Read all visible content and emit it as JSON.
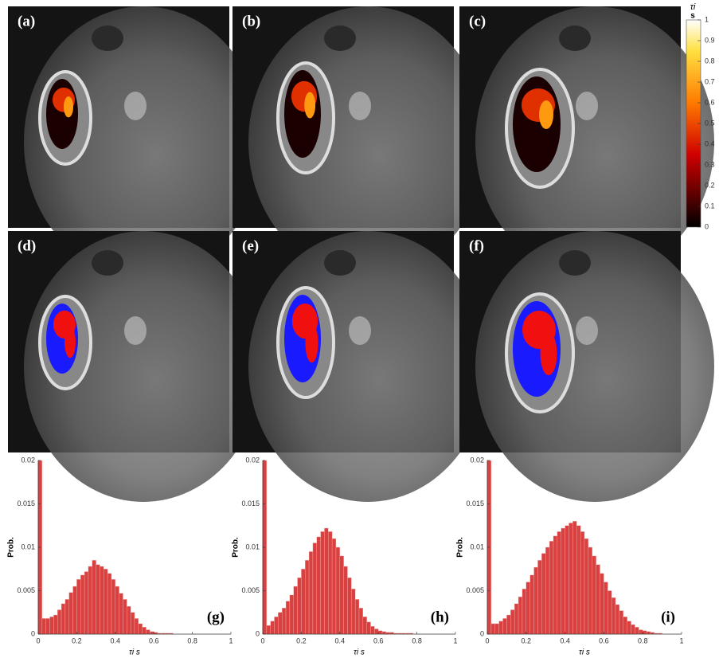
{
  "panels": [
    "(a)",
    "(b)",
    "(c)",
    "(d)",
    "(e)",
    "(f)"
  ],
  "colorbar": {
    "title": "τi",
    "unit": "s",
    "lim": [
      0,
      1
    ],
    "ticks": [
      0,
      0.1,
      0.2,
      0.3,
      0.4,
      0.5,
      0.6,
      0.7,
      0.8,
      0.9,
      1
    ]
  },
  "chart_data": [
    {
      "type": "histogram",
      "annotation": "(g)",
      "xlabel": "τi s",
      "ylabel": "Prob.",
      "color": "#d94040",
      "bins": [
        0,
        0.02,
        0.04,
        0.06,
        0.08,
        0.1,
        0.12,
        0.14,
        0.16,
        0.18,
        0.2,
        0.22,
        0.24,
        0.26,
        0.28,
        0.3,
        0.32,
        0.34,
        0.36,
        0.38,
        0.4,
        0.42,
        0.44,
        0.46,
        0.48,
        0.5,
        0.52,
        0.54,
        0.56,
        0.58,
        0.6,
        0.62,
        0.64,
        0.66,
        0.68,
        0.7,
        0.72,
        0.74,
        0.76,
        0.78,
        0.8,
        0.82,
        0.84,
        0.86,
        0.88,
        0.9,
        0.92,
        0.94,
        0.96,
        0.98,
        1
      ],
      "values": [
        0.02,
        0.0018,
        0.0018,
        0.002,
        0.0022,
        0.0028,
        0.0035,
        0.004,
        0.0048,
        0.0055,
        0.0063,
        0.0068,
        0.0072,
        0.0078,
        0.0085,
        0.008,
        0.0078,
        0.0075,
        0.007,
        0.0063,
        0.0055,
        0.0047,
        0.004,
        0.0032,
        0.0025,
        0.0018,
        0.0012,
        0.0008,
        0.0005,
        0.0003,
        0.0002,
        0.0001,
        0.0001,
        0.0001,
        0.0001,
        0,
        0,
        0,
        0,
        0,
        0,
        0,
        0,
        0,
        0,
        0,
        0,
        0,
        0,
        0
      ],
      "xlim": [
        0,
        1
      ],
      "ylim": [
        0,
        0.02
      ],
      "xticks": [
        0,
        0.2,
        0.4,
        0.6,
        0.8,
        1
      ],
      "yticks": [
        0,
        0.005,
        0.01,
        0.015,
        0.02
      ]
    },
    {
      "type": "histogram",
      "annotation": "(h)",
      "xlabel": "τi s",
      "ylabel": "Prob.",
      "color": "#d94040",
      "bins": [
        0,
        0.02,
        0.04,
        0.06,
        0.08,
        0.1,
        0.12,
        0.14,
        0.16,
        0.18,
        0.2,
        0.22,
        0.24,
        0.26,
        0.28,
        0.3,
        0.32,
        0.34,
        0.36,
        0.38,
        0.4,
        0.42,
        0.44,
        0.46,
        0.48,
        0.5,
        0.52,
        0.54,
        0.56,
        0.58,
        0.6,
        0.62,
        0.64,
        0.66,
        0.68,
        0.7,
        0.72,
        0.74,
        0.76,
        0.78,
        0.8,
        0.82,
        0.84,
        0.86,
        0.88,
        0.9,
        0.92,
        0.94,
        0.96,
        0.98,
        1
      ],
      "values": [
        0.02,
        0.001,
        0.0015,
        0.002,
        0.0025,
        0.003,
        0.0038,
        0.0045,
        0.0055,
        0.0065,
        0.0075,
        0.0085,
        0.0095,
        0.0105,
        0.0112,
        0.0118,
        0.0122,
        0.0118,
        0.011,
        0.01,
        0.009,
        0.0078,
        0.0065,
        0.0052,
        0.004,
        0.003,
        0.002,
        0.0014,
        0.0009,
        0.0006,
        0.0004,
        0.0003,
        0.0002,
        0.0002,
        0.0001,
        0.0001,
        0.0001,
        0.0001,
        0.0001,
        0,
        0,
        0,
        0,
        0,
        0,
        0,
        0,
        0,
        0,
        0
      ],
      "xlim": [
        0,
        1
      ],
      "ylim": [
        0,
        0.02
      ],
      "xticks": [
        0,
        0.2,
        0.4,
        0.6,
        0.8,
        1
      ],
      "yticks": [
        0,
        0.005,
        0.01,
        0.015,
        0.02
      ]
    },
    {
      "type": "histogram",
      "annotation": "(i)",
      "xlabel": "τi s",
      "ylabel": "Prob.",
      "color": "#d94040",
      "bins": [
        0,
        0.02,
        0.04,
        0.06,
        0.08,
        0.1,
        0.12,
        0.14,
        0.16,
        0.18,
        0.2,
        0.22,
        0.24,
        0.26,
        0.28,
        0.3,
        0.32,
        0.34,
        0.36,
        0.38,
        0.4,
        0.42,
        0.44,
        0.46,
        0.48,
        0.5,
        0.52,
        0.54,
        0.56,
        0.58,
        0.6,
        0.62,
        0.64,
        0.66,
        0.68,
        0.7,
        0.72,
        0.74,
        0.76,
        0.78,
        0.8,
        0.82,
        0.84,
        0.86,
        0.88,
        0.9,
        0.92,
        0.94,
        0.96,
        0.98,
        1
      ],
      "values": [
        0.02,
        0.0012,
        0.0012,
        0.0015,
        0.0018,
        0.0022,
        0.0028,
        0.0035,
        0.0043,
        0.0052,
        0.006,
        0.0068,
        0.0077,
        0.0085,
        0.0093,
        0.01,
        0.0107,
        0.0113,
        0.0118,
        0.0122,
        0.0125,
        0.0128,
        0.013,
        0.0125,
        0.0118,
        0.011,
        0.01,
        0.009,
        0.008,
        0.007,
        0.006,
        0.005,
        0.0042,
        0.0034,
        0.0027,
        0.002,
        0.0015,
        0.0011,
        0.0008,
        0.0005,
        0.0004,
        0.0003,
        0.0002,
        0.0001,
        0.0001,
        0,
        0,
        0,
        0,
        0
      ],
      "xlim": [
        0,
        1
      ],
      "ylim": [
        0,
        0.02
      ],
      "xticks": [
        0,
        0.2,
        0.4,
        0.6,
        0.8,
        1
      ],
      "yticks": [
        0,
        0.005,
        0.01,
        0.015,
        0.02
      ]
    }
  ]
}
